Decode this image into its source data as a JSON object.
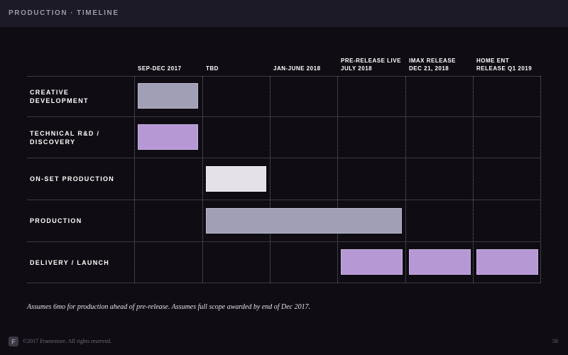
{
  "header": {
    "section": "PRODUCTION",
    "separator": "·",
    "title": "TIMELINE"
  },
  "columns": [
    {
      "line1": "",
      "line2": "SEP-DEC 2017"
    },
    {
      "line1": "",
      "line2": "TBD"
    },
    {
      "line1": "",
      "line2": "JAN-JUNE 2018"
    },
    {
      "line1": "PRE-RELEASE LIVE",
      "line2": "JULY 2018"
    },
    {
      "line1": "IMAX RELEASE",
      "line2": "DEC 21, 2018"
    },
    {
      "line1": "HOME ENT",
      "line2": "RELEASE Q1 2019"
    }
  ],
  "rows": [
    {
      "line1": "CREATIVE",
      "line2": "DEVELOPMENT"
    },
    {
      "line1": "TECHNICAL R&D /",
      "line2": "DISCOVERY"
    },
    {
      "line1": "ON-SET PRODUCTION",
      "line2": ""
    },
    {
      "line1": "PRODUCTION",
      "line2": ""
    },
    {
      "line1": "DELIVERY / LAUNCH",
      "line2": ""
    }
  ],
  "bars": [
    {
      "row": 0,
      "start_col": 0,
      "end_col": 0,
      "color": "#a09fb5"
    },
    {
      "row": 1,
      "start_col": 0,
      "end_col": 0,
      "color": "#b698d4"
    },
    {
      "row": 2,
      "start_col": 1,
      "end_col": 1,
      "color": "#e4e1e8"
    },
    {
      "row": 3,
      "start_col": 1,
      "end_col": 3,
      "color": "#a09fb5"
    },
    {
      "row": 4,
      "start_col": 3,
      "end_col": 3,
      "color": "#b698d4"
    },
    {
      "row": 4,
      "start_col": 4,
      "end_col": 4,
      "color": "#b698d4"
    },
    {
      "row": 4,
      "start_col": 5,
      "end_col": 5,
      "color": "#b698d4"
    }
  ],
  "footnote": "Assumes 6mo for production ahead of pre-release. Assumes full scope awarded by end of Dec 2017.",
  "footer": {
    "copyright": "©2017 Framestore. All rights reserved.",
    "page_number": "56"
  },
  "colors": {
    "background": "#0f0d13",
    "header_bar": "#1c1a26",
    "grey_bar": "#a09fb5",
    "purple_bar": "#b698d4",
    "light_bar": "#e4e1e8"
  }
}
